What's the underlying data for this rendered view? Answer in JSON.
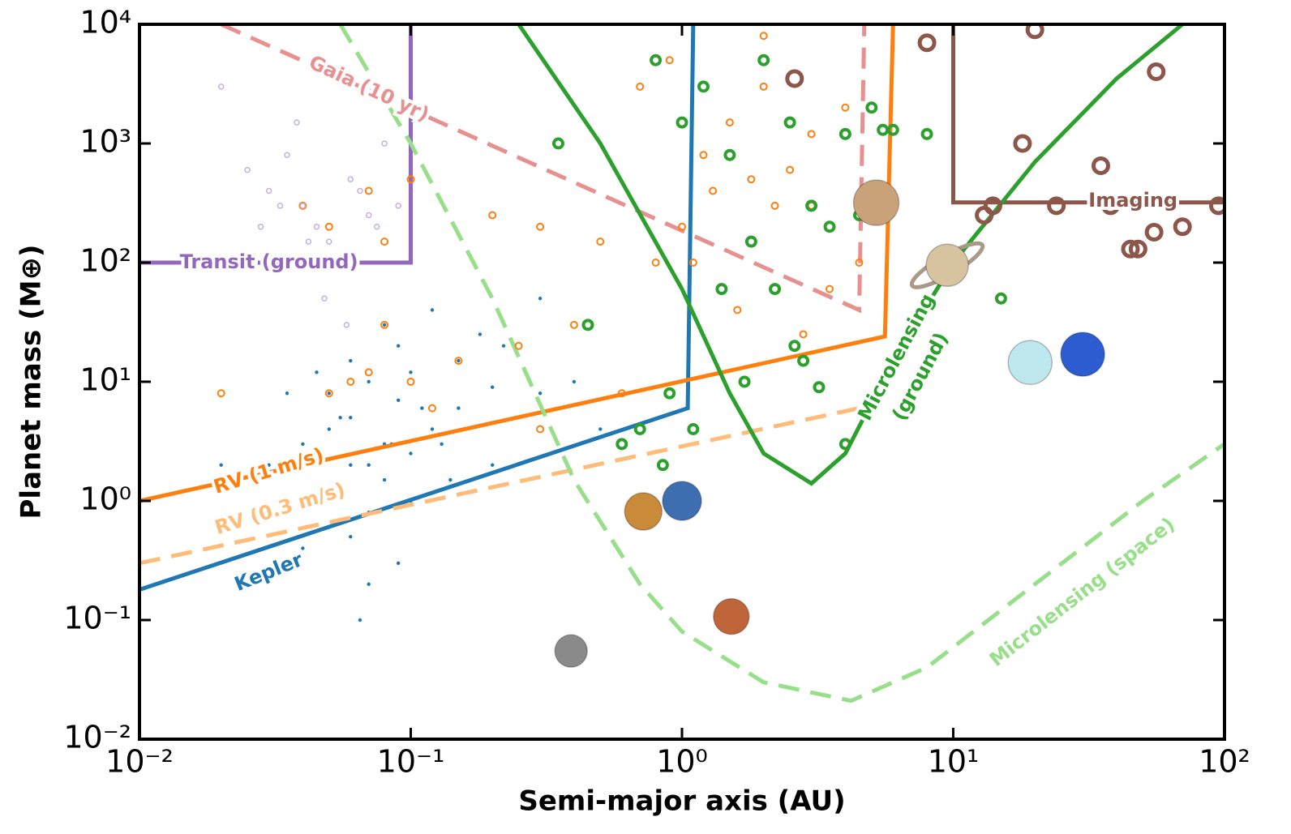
{
  "chart_data": {
    "type": "scatter",
    "xlabel": "Semi-major axis (AU)",
    "ylabel": "Planet mass (M⊕)",
    "xscale": "log",
    "yscale": "log",
    "xlim": [
      0.01,
      100
    ],
    "ylim": [
      0.01,
      10000
    ],
    "xticks": [
      {
        "value": 0.01,
        "label": "10⁻²"
      },
      {
        "value": 0.1,
        "label": "10⁻¹"
      },
      {
        "value": 1,
        "label": "10⁰"
      },
      {
        "value": 10,
        "label": "10¹"
      },
      {
        "value": 100,
        "label": "10²"
      }
    ],
    "yticks": [
      {
        "value": 0.01,
        "label": "10⁻²"
      },
      {
        "value": 0.1,
        "label": "10⁻¹"
      },
      {
        "value": 1,
        "label": "10⁰"
      },
      {
        "value": 10,
        "label": "10¹"
      },
      {
        "value": 100,
        "label": "10²"
      },
      {
        "value": 1000,
        "label": "10³"
      },
      {
        "value": 10000,
        "label": "10⁴"
      }
    ],
    "series": [
      {
        "color": "#1f77b4",
        "marker": "dot",
        "x": [
          0.05,
          0.06,
          0.07,
          0.08,
          0.09,
          0.1,
          0.12,
          0.15,
          0.2,
          0.07,
          0.08,
          0.1,
          0.05,
          0.04,
          0.03,
          0.06,
          0.09,
          0.11,
          0.13,
          0.18,
          0.25,
          0.3,
          0.4,
          0.5,
          0.07,
          0.06,
          0.1,
          0.08,
          0.05,
          0.12,
          0.15,
          0.2,
          0.04,
          0.09,
          0.07,
          0.3,
          0.02,
          0.035,
          0.045,
          0.065,
          0.14,
          0.22,
          0.055,
          0.085,
          0.06
        ],
        "y": [
          8,
          5,
          10,
          3,
          7,
          12,
          4,
          6,
          9,
          2,
          1.5,
          2.5,
          4,
          3,
          2,
          15,
          20,
          6,
          3,
          25,
          5,
          8,
          10,
          4,
          0.8,
          0.5,
          1,
          30,
          1.2,
          40,
          15,
          2,
          0.4,
          0.3,
          0.2,
          50,
          2,
          8,
          12,
          0.1,
          1.5,
          20,
          5,
          3,
          2
        ]
      },
      {
        "color": "#ff7f0e",
        "marker": "ring",
        "x": [
          0.04,
          0.05,
          0.07,
          0.08,
          0.1,
          0.06,
          0.2,
          0.3,
          0.5,
          0.8,
          1.2,
          1.5,
          2,
          2.5,
          3,
          4,
          1.8,
          2.2,
          1.3,
          3.5,
          0.7,
          0.9,
          1,
          2,
          3,
          4.5,
          0.4,
          0.6,
          0.15,
          0.25,
          0.05,
          0.07,
          0.1,
          0.12,
          0.3,
          0.08,
          1.6,
          2.8,
          1.1,
          0.02
        ],
        "y": [
          300,
          200,
          400,
          150,
          500,
          10,
          250,
          200,
          150,
          100,
          800,
          1500,
          3000,
          600,
          1200,
          2000,
          500,
          300,
          400,
          60,
          3000,
          5000,
          200,
          8000,
          300,
          100,
          30,
          8,
          15,
          20,
          8,
          12,
          10,
          6,
          4,
          30,
          40,
          25,
          100,
          8
        ]
      },
      {
        "color": "#2ca02c",
        "marker": "ring",
        "x": [
          0.8,
          1.2,
          1.5,
          2,
          2.5,
          3,
          4,
          5,
          6,
          1.8,
          2.2,
          3.5,
          0.7,
          0.9,
          1.1,
          4.5,
          5.5,
          2.8,
          1.7,
          0.35,
          1,
          1.4,
          2.6,
          3.2,
          0.6,
          0.85,
          15,
          8,
          4,
          0.45
        ],
        "y": [
          5000,
          3000,
          800,
          5000,
          1500,
          300,
          1200,
          2000,
          1300,
          150,
          60,
          200,
          4,
          8,
          4,
          250,
          1300,
          15,
          10,
          1000,
          1500,
          60,
          20,
          9,
          3,
          2,
          50,
          1200,
          3,
          30
        ]
      },
      {
        "color": "#c5b0e0",
        "marker": "ring",
        "x": [
          0.02,
          0.025,
          0.03,
          0.035,
          0.04,
          0.045,
          0.05,
          0.06,
          0.07,
          0.08,
          0.028,
          0.033,
          0.042,
          0.055,
          0.065,
          0.075,
          0.09,
          0.038,
          0.048,
          0.058
        ],
        "y": [
          3000,
          600,
          400,
          800,
          300,
          200,
          150,
          500,
          250,
          1000,
          200,
          300,
          150,
          100,
          400,
          200,
          300,
          1500,
          50,
          30
        ]
      },
      {
        "color": "#8c564b",
        "marker": "ring",
        "x": [
          8,
          13,
          14,
          18,
          20,
          24,
          35,
          38,
          45,
          48,
          55,
          56,
          70,
          95,
          2.6
        ],
        "y": [
          7000,
          250,
          300,
          1000,
          9000,
          300,
          650,
          300,
          130,
          130,
          180,
          4000,
          200,
          300,
          3500
        ]
      }
    ],
    "curves": [
      {
        "color": "#1f77b4",
        "dashed": false,
        "x": [
          0.01,
          1.05,
          1.1
        ],
        "y": [
          0.18,
          6,
          10000
        ]
      },
      {
        "color": "#ff7f0e",
        "dashed": false,
        "x": [
          0.01,
          5.6,
          6
        ],
        "y": [
          1,
          24,
          10000
        ]
      },
      {
        "color": "#ffbb78",
        "dashed": true,
        "x": [
          0.01,
          4.5
        ],
        "y": [
          0.3,
          6
        ]
      },
      {
        "color": "#e8908f",
        "dashed": true,
        "x": [
          0.02,
          4.5,
          4.7
        ],
        "y": [
          10000,
          40,
          10000
        ]
      },
      {
        "color": "#9467bd",
        "dashed": false,
        "x": [
          0.01,
          0.1,
          0.1
        ],
        "y": [
          100,
          100,
          10000
        ]
      },
      {
        "color": "#8c564b",
        "dashed": false,
        "x": [
          10,
          10,
          100
        ],
        "y": [
          10000,
          320,
          320
        ]
      },
      {
        "color": "#2ca02c",
        "dashed": false,
        "x": [
          0.25,
          0.5,
          1,
          1.5,
          2,
          3,
          4,
          6,
          10,
          20,
          40,
          70
        ],
        "y": [
          10000,
          1000,
          60,
          8,
          2.5,
          1.4,
          2.5,
          15,
          100,
          700,
          3500,
          10000
        ]
      },
      {
        "color": "#98df8a",
        "dashed": true,
        "x": [
          0.055,
          0.1,
          0.2,
          0.4,
          0.7,
          1,
          2,
          4.2,
          8,
          20,
          50,
          100
        ],
        "y": [
          10000,
          1000,
          50,
          1.5,
          0.2,
          0.08,
          0.03,
          0.021,
          0.04,
          0.2,
          1,
          3
        ]
      }
    ],
    "planets": {
      "x": [
        0.39,
        0.72,
        1,
        1.52,
        5.2,
        9.5,
        19.2,
        30
      ],
      "y": [
        0.055,
        0.815,
        1,
        0.107,
        318,
        95,
        14.5,
        17
      ],
      "colors": [
        "#8a8a8a",
        "#c98a3a",
        "#3d6fb0",
        "#c0653a",
        "#c9a27a",
        "#d8c3a0",
        "#bfe8ee",
        "#2d5bd0"
      ]
    },
    "annotations": [
      {
        "text": "Gaia (10 yr)",
        "x": 0.07,
        "y": 2860,
        "color": "#e8908f"
      },
      {
        "text": "Transit (ground)",
        "x": 0.03,
        "y": 100,
        "color": "#9467bd"
      },
      {
        "text": "Imaging",
        "x": 46,
        "y": 330,
        "color": "#8c564b"
      },
      {
        "text": "Microlensing",
        "x": 6.2,
        "y": 16,
        "color": "#2ca02c"
      },
      {
        "text": "(ground)",
        "x": 7.6,
        "y": 11,
        "color": "#2ca02c"
      },
      {
        "text": "RV (1 m/s)",
        "x": 0.03,
        "y": 1.76,
        "color": "#ff7f0e"
      },
      {
        "text": "RV (0.3 m/s)",
        "x": 0.033,
        "y": 0.85,
        "color": "#ffbb78"
      },
      {
        "text": "Kepler",
        "x": 0.03,
        "y": 0.25,
        "color": "#1f77b4"
      },
      {
        "text": "Microlensing (space)",
        "x": 30,
        "y": 0.17,
        "color": "#98df8a"
      }
    ]
  }
}
